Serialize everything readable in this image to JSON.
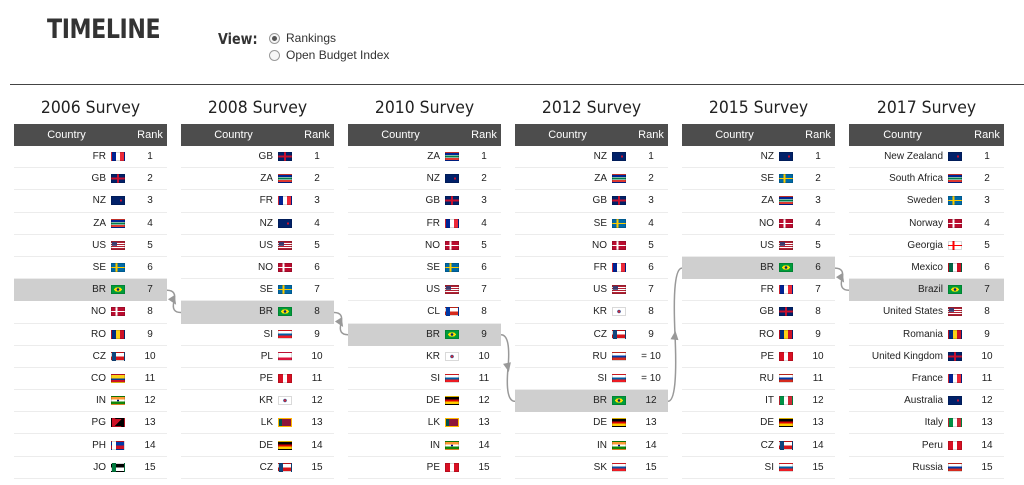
{
  "title": "TIMELINE",
  "view": {
    "label": "View:",
    "options": [
      {
        "label": "Rankings",
        "selected": true
      },
      {
        "label": "Open Budget Index",
        "selected": false
      }
    ]
  },
  "headers": {
    "country": "Country",
    "rank": "Rank"
  },
  "colors": {
    "header_bg": "#4d4d4d",
    "highlight_bg": "#cfcfcf",
    "connector": "#999999"
  },
  "flag_colors": {
    "FR": [
      "#002395",
      "#ffffff",
      "#ed2939"
    ],
    "GB": [
      "#012169",
      "#ffffff",
      "#c8102e"
    ],
    "NZ": [
      "#012169",
      "#012169",
      "#c8102e"
    ],
    "ZA": [
      "#007a4d",
      "#ffb612",
      "#de3831"
    ],
    "US": [
      "#b22234",
      "#ffffff",
      "#3c3b6e"
    ],
    "SE": [
      "#006aa7",
      "#fecc00",
      "#006aa7"
    ],
    "BR": [
      "#009c3b",
      "#ffdf00",
      "#002776"
    ],
    "NO": [
      "#ba0c2f",
      "#ffffff",
      "#00205b"
    ],
    "RO": [
      "#002b7f",
      "#fcd116",
      "#ce1126"
    ],
    "CZ": [
      "#ffffff",
      "#d7141a",
      "#11457e"
    ],
    "CO": [
      "#fcd116",
      "#003893",
      "#ce1126"
    ],
    "IN": [
      "#ff9933",
      "#ffffff",
      "#138808"
    ],
    "PG": [
      "#000000",
      "#ce1126",
      "#fcd116"
    ],
    "PH": [
      "#0038a8",
      "#ce1126",
      "#ffffff"
    ],
    "JO": [
      "#000000",
      "#ffffff",
      "#007a3d"
    ],
    "SI": [
      "#ffffff",
      "#005da4",
      "#ed1c24"
    ],
    "PL": [
      "#ffffff",
      "#ffffff",
      "#dc143c"
    ],
    "PE": [
      "#d91023",
      "#ffffff",
      "#d91023"
    ],
    "KR": [
      "#ffffff",
      "#cd2e3a",
      "#0047a0"
    ],
    "LK": [
      "#ffb700",
      "#8d153a",
      "#00534e"
    ],
    "DE": [
      "#000000",
      "#dd0000",
      "#ffce00"
    ],
    "CL": [
      "#ffffff",
      "#d52b1e",
      "#0039a6"
    ],
    "RU": [
      "#ffffff",
      "#0039a6",
      "#d52b1e"
    ],
    "SK": [
      "#ffffff",
      "#0b4ea2",
      "#ee1c25"
    ],
    "IT": [
      "#009246",
      "#ffffff",
      "#ce2b37"
    ],
    "GE": [
      "#ffffff",
      "#ff0000",
      "#ffffff"
    ],
    "MX": [
      "#006847",
      "#ffffff",
      "#ce1126"
    ],
    "AU": [
      "#012169",
      "#012169",
      "#ffffff"
    ]
  },
  "chart_data": {
    "type": "table",
    "highlight_country": "BR",
    "brazil_rank_by_survey": [
      7,
      8,
      9,
      12,
      6,
      7
    ],
    "surveys": [
      {
        "title": "2006 Survey",
        "rows": [
          {
            "country": "FR",
            "flag": "FR",
            "rank": "1"
          },
          {
            "country": "GB",
            "flag": "GB",
            "rank": "2"
          },
          {
            "country": "NZ",
            "flag": "NZ",
            "rank": "3"
          },
          {
            "country": "ZA",
            "flag": "ZA",
            "rank": "4"
          },
          {
            "country": "US",
            "flag": "US",
            "rank": "5"
          },
          {
            "country": "SE",
            "flag": "SE",
            "rank": "6"
          },
          {
            "country": "BR",
            "flag": "BR",
            "rank": "7",
            "highlight": true
          },
          {
            "country": "NO",
            "flag": "NO",
            "rank": "8"
          },
          {
            "country": "RO",
            "flag": "RO",
            "rank": "9"
          },
          {
            "country": "CZ",
            "flag": "CZ",
            "rank": "10"
          },
          {
            "country": "CO",
            "flag": "CO",
            "rank": "11"
          },
          {
            "country": "IN",
            "flag": "IN",
            "rank": "12"
          },
          {
            "country": "PG",
            "flag": "PG",
            "rank": "13"
          },
          {
            "country": "PH",
            "flag": "PH",
            "rank": "14"
          },
          {
            "country": "JO",
            "flag": "JO",
            "rank": "15"
          }
        ]
      },
      {
        "title": "2008 Survey",
        "rows": [
          {
            "country": "GB",
            "flag": "GB",
            "rank": "1"
          },
          {
            "country": "ZA",
            "flag": "ZA",
            "rank": "2"
          },
          {
            "country": "FR",
            "flag": "FR",
            "rank": "3"
          },
          {
            "country": "NZ",
            "flag": "NZ",
            "rank": "4"
          },
          {
            "country": "US",
            "flag": "US",
            "rank": "5"
          },
          {
            "country": "NO",
            "flag": "NO",
            "rank": "6"
          },
          {
            "country": "SE",
            "flag": "SE",
            "rank": "7"
          },
          {
            "country": "BR",
            "flag": "BR",
            "rank": "8",
            "highlight": true
          },
          {
            "country": "SI",
            "flag": "SI",
            "rank": "9"
          },
          {
            "country": "PL",
            "flag": "PL",
            "rank": "10"
          },
          {
            "country": "PE",
            "flag": "PE",
            "rank": "11"
          },
          {
            "country": "KR",
            "flag": "KR",
            "rank": "12"
          },
          {
            "country": "LK",
            "flag": "LK",
            "rank": "13"
          },
          {
            "country": "DE",
            "flag": "DE",
            "rank": "14"
          },
          {
            "country": "CZ",
            "flag": "CZ",
            "rank": "15"
          }
        ]
      },
      {
        "title": "2010 Survey",
        "rows": [
          {
            "country": "ZA",
            "flag": "ZA",
            "rank": "1"
          },
          {
            "country": "NZ",
            "flag": "NZ",
            "rank": "2"
          },
          {
            "country": "GB",
            "flag": "GB",
            "rank": "3"
          },
          {
            "country": "FR",
            "flag": "FR",
            "rank": "4"
          },
          {
            "country": "NO",
            "flag": "NO",
            "rank": "5"
          },
          {
            "country": "SE",
            "flag": "SE",
            "rank": "6"
          },
          {
            "country": "US",
            "flag": "US",
            "rank": "7"
          },
          {
            "country": "CL",
            "flag": "CL",
            "rank": "8"
          },
          {
            "country": "BR",
            "flag": "BR",
            "rank": "9",
            "highlight": true
          },
          {
            "country": "KR",
            "flag": "KR",
            "rank": "10"
          },
          {
            "country": "SI",
            "flag": "SI",
            "rank": "11"
          },
          {
            "country": "DE",
            "flag": "DE",
            "rank": "12"
          },
          {
            "country": "LK",
            "flag": "LK",
            "rank": "13"
          },
          {
            "country": "IN",
            "flag": "IN",
            "rank": "14"
          },
          {
            "country": "PE",
            "flag": "PE",
            "rank": "15"
          }
        ]
      },
      {
        "title": "2012 Survey",
        "rows": [
          {
            "country": "NZ",
            "flag": "NZ",
            "rank": "1"
          },
          {
            "country": "ZA",
            "flag": "ZA",
            "rank": "2"
          },
          {
            "country": "GB",
            "flag": "GB",
            "rank": "3"
          },
          {
            "country": "SE",
            "flag": "SE",
            "rank": "4"
          },
          {
            "country": "NO",
            "flag": "NO",
            "rank": "5"
          },
          {
            "country": "FR",
            "flag": "FR",
            "rank": "6"
          },
          {
            "country": "US",
            "flag": "US",
            "rank": "7"
          },
          {
            "country": "KR",
            "flag": "KR",
            "rank": "8"
          },
          {
            "country": "CZ",
            "flag": "CZ",
            "rank": "9"
          },
          {
            "country": "RU",
            "flag": "RU",
            "rank": "= 10"
          },
          {
            "country": "SI",
            "flag": "SI",
            "rank": "= 10"
          },
          {
            "country": "BR",
            "flag": "BR",
            "rank": "12",
            "highlight": true
          },
          {
            "country": "DE",
            "flag": "DE",
            "rank": "13"
          },
          {
            "country": "IN",
            "flag": "IN",
            "rank": "14"
          },
          {
            "country": "SK",
            "flag": "SK",
            "rank": "15"
          }
        ]
      },
      {
        "title": "2015 Survey",
        "rows": [
          {
            "country": "NZ",
            "flag": "NZ",
            "rank": "1"
          },
          {
            "country": "SE",
            "flag": "SE",
            "rank": "2"
          },
          {
            "country": "ZA",
            "flag": "ZA",
            "rank": "3"
          },
          {
            "country": "NO",
            "flag": "NO",
            "rank": "4"
          },
          {
            "country": "US",
            "flag": "US",
            "rank": "5"
          },
          {
            "country": "BR",
            "flag": "BR",
            "rank": "6",
            "highlight": true
          },
          {
            "country": "FR",
            "flag": "FR",
            "rank": "7"
          },
          {
            "country": "GB",
            "flag": "GB",
            "rank": "8"
          },
          {
            "country": "RO",
            "flag": "RO",
            "rank": "9"
          },
          {
            "country": "PE",
            "flag": "PE",
            "rank": "10"
          },
          {
            "country": "RU",
            "flag": "RU",
            "rank": "11"
          },
          {
            "country": "IT",
            "flag": "IT",
            "rank": "12"
          },
          {
            "country": "DE",
            "flag": "DE",
            "rank": "13"
          },
          {
            "country": "CZ",
            "flag": "CZ",
            "rank": "14"
          },
          {
            "country": "SI",
            "flag": "SI",
            "rank": "15"
          }
        ]
      },
      {
        "title": "2017 Survey",
        "rows": [
          {
            "country": "New Zealand",
            "flag": "NZ",
            "rank": "1"
          },
          {
            "country": "South Africa",
            "flag": "ZA",
            "rank": "2"
          },
          {
            "country": "Sweden",
            "flag": "SE",
            "rank": "3"
          },
          {
            "country": "Norway",
            "flag": "NO",
            "rank": "4"
          },
          {
            "country": "Georgia",
            "flag": "GE",
            "rank": "5"
          },
          {
            "country": "Mexico",
            "flag": "MX",
            "rank": "6"
          },
          {
            "country": "Brazil",
            "flag": "BR",
            "rank": "7",
            "highlight": true
          },
          {
            "country": "United States",
            "flag": "US",
            "rank": "8"
          },
          {
            "country": "Romania",
            "flag": "RO",
            "rank": "9"
          },
          {
            "country": "United Kingdom",
            "flag": "GB",
            "rank": "10"
          },
          {
            "country": "France",
            "flag": "FR",
            "rank": "11"
          },
          {
            "country": "Australia",
            "flag": "AU",
            "rank": "12"
          },
          {
            "country": "Italy",
            "flag": "IT",
            "rank": "13"
          },
          {
            "country": "Peru",
            "flag": "PE",
            "rank": "14"
          },
          {
            "country": "Russia",
            "flag": "RU",
            "rank": "15"
          }
        ]
      }
    ]
  }
}
